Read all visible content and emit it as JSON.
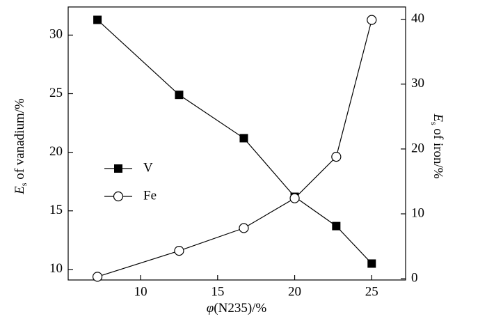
{
  "chart_data": {
    "type": "line",
    "x": [
      7.2,
      12.5,
      16.7,
      20,
      22.7,
      25
    ],
    "xlabel": [
      "φ",
      "(N235)/%"
    ],
    "ylabel": [
      "E",
      "s",
      " of vanadium/%"
    ],
    "y2label": [
      "E",
      "s",
      " of iron/%"
    ],
    "xlim": [
      5.3,
      27.2
    ],
    "xticks": [
      10,
      15,
      20,
      25
    ],
    "ylim": [
      9.1,
      32.4
    ],
    "yticks": [
      10,
      15,
      20,
      25,
      30
    ],
    "y2lim": [
      -0.2,
      41.9
    ],
    "y2ticks": [
      0,
      10,
      20,
      30,
      40
    ],
    "series": [
      {
        "name": "V",
        "color": "#000000",
        "marker": "square",
        "values": [
          31.3,
          24.9,
          21.2,
          16.2,
          13.7,
          10.5
        ]
      },
      {
        "name": "Fe",
        "color": "#000000",
        "marker": "circle",
        "axis": "y2",
        "values": [
          0.3,
          4.3,
          7.8,
          12.4,
          18.8,
          39.9
        ]
      }
    ]
  }
}
